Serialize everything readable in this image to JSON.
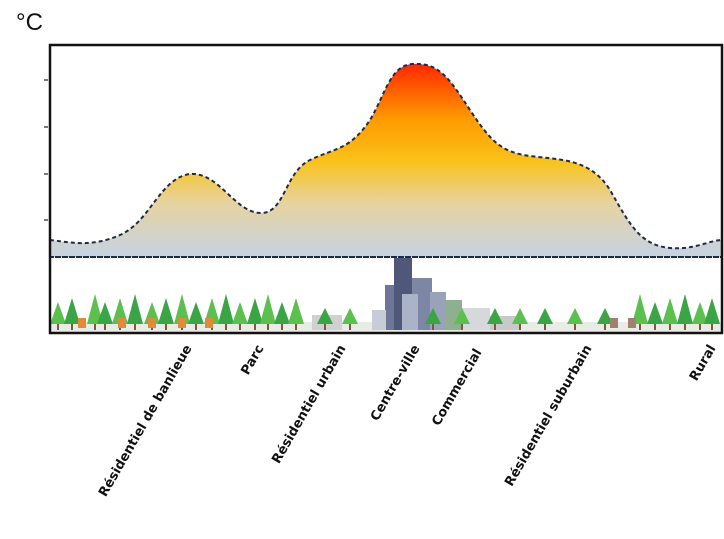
{
  "unit_label": "°C",
  "zones": [
    {
      "label": "Résidentiel de banlieue"
    },
    {
      "label": "Parc"
    },
    {
      "label": "Résidentiel urbain"
    },
    {
      "label": "Centre-ville"
    },
    {
      "label": "Commercial"
    },
    {
      "label": "Résidentiel suburbain"
    },
    {
      "label": "Rural"
    }
  ]
}
